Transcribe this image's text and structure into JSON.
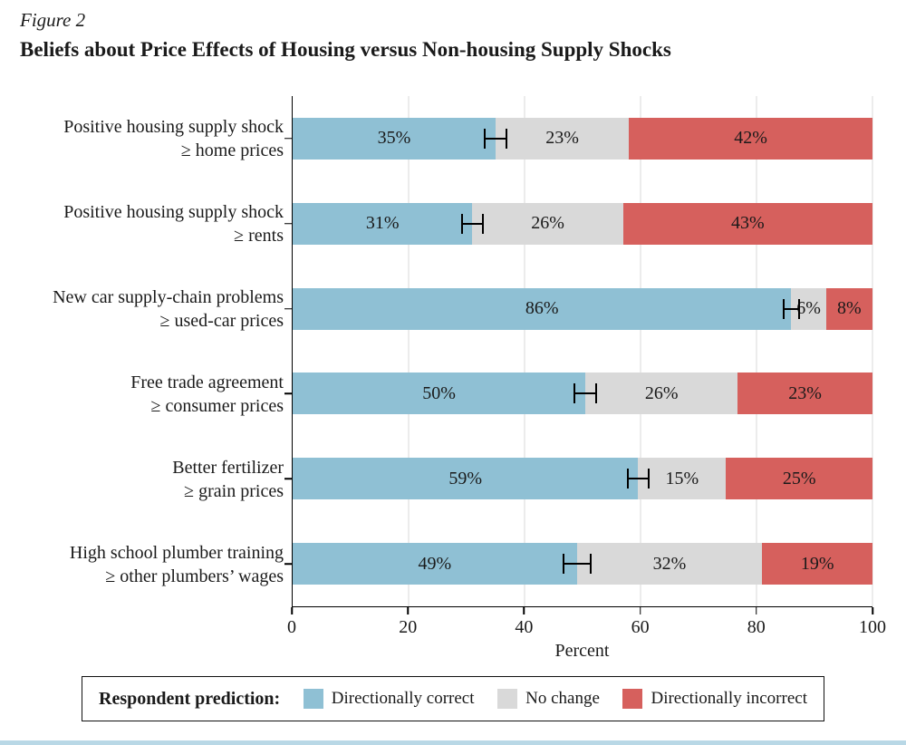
{
  "figure": {
    "label": "Figure 2",
    "title": "Beliefs about Price Effects of Housing versus Non-housing Supply Shocks"
  },
  "chart_data": {
    "type": "bar",
    "orientation": "horizontal",
    "stacked": true,
    "title": "Beliefs about Price Effects of Housing versus Non-housing Supply Shocks",
    "xlabel": "Percent",
    "xlim": [
      0,
      100
    ],
    "xticks": [
      0,
      20,
      40,
      60,
      80,
      100
    ],
    "grid": "vertical-light-gray",
    "categories": [
      "Positive housing supply shock\n≥ home prices",
      "Positive housing supply shock\n≥ rents",
      "New car supply-chain problems\n≥ used-car prices",
      "Free trade agreement\n≥ consumer prices",
      "Better fertilizer\n≥ grain prices",
      "High school plumber training\n≥ other plumbers’ wages"
    ],
    "series": [
      {
        "name": "Directionally correct",
        "color": "#8fc0d4",
        "values": [
          35,
          31,
          86,
          50,
          59,
          49
        ]
      },
      {
        "name": "No change",
        "color": "#d9d9d9",
        "values": [
          23,
          26,
          6,
          26,
          15,
          32
        ]
      },
      {
        "name": "Directionally incorrect",
        "color": "#d6605d",
        "values": [
          42,
          43,
          8,
          23,
          25,
          19
        ]
      }
    ],
    "value_label_format": "{v}%",
    "error_bars": {
      "on_series": "Directionally correct",
      "center": [
        35,
        31,
        86,
        50,
        59,
        49
      ],
      "halfwidth": [
        2,
        2,
        1.5,
        2,
        2,
        2.5
      ]
    },
    "legend": {
      "title": "Respondent prediction:",
      "position": "bottom",
      "entries": [
        "Directionally correct",
        "No change",
        "Directionally incorrect"
      ]
    }
  }
}
